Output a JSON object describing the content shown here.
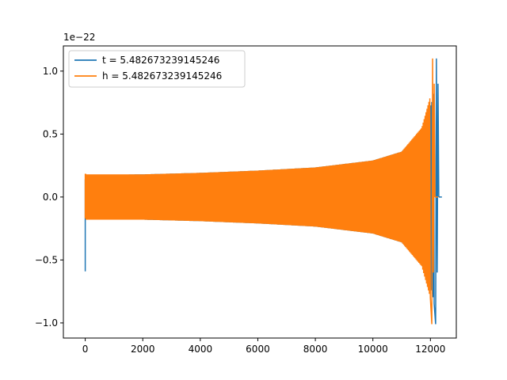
{
  "chart_data": {
    "type": "line",
    "title": "",
    "xlabel": "",
    "ylabel": "",
    "y_offset_text": "1e−22",
    "xlim": [
      -760,
      12900
    ],
    "ylim": [
      -1.12,
      1.2
    ],
    "x_ticks": [
      0,
      2000,
      4000,
      6000,
      8000,
      10000,
      12000
    ],
    "x_tick_labels": [
      "0",
      "2000",
      "4000",
      "6000",
      "8000",
      "10000",
      "12000"
    ],
    "y_ticks": [
      -1.0,
      -0.5,
      0.0,
      0.5,
      1.0
    ],
    "y_tick_labels": [
      "−1.0",
      "−0.5",
      "0.0",
      "0.5",
      "1.0"
    ],
    "grid": false,
    "legend_position": "top-left",
    "series": [
      {
        "name": "t = 5.482673239145246",
        "color": "#1f77b4",
        "shape": "chirp",
        "x_start": 0,
        "x_end": 12290,
        "start_spike": [
          -0.59,
          0.14
        ],
        "envelope": [
          [
            0,
            0.0
          ],
          [
            200,
            0.175
          ],
          [
            2000,
            0.18
          ],
          [
            4000,
            0.192
          ],
          [
            6000,
            0.21
          ],
          [
            8000,
            0.235
          ],
          [
            10000,
            0.29
          ],
          [
            11000,
            0.36
          ],
          [
            11800,
            0.55
          ],
          [
            12100,
            0.8
          ],
          [
            12290,
            1.1
          ]
        ],
        "peak_high": 1.1,
        "peak_low": -1.01
      },
      {
        "name": "h = 5.482673239145246",
        "color": "#ff7f0e",
        "shape": "chirp",
        "x_start": 0,
        "x_end": 12160,
        "start_spike": [
          -0.17,
          0.18
        ],
        "envelope": [
          [
            0,
            0.18
          ],
          [
            2000,
            0.18
          ],
          [
            4000,
            0.192
          ],
          [
            6000,
            0.21
          ],
          [
            8000,
            0.235
          ],
          [
            10000,
            0.29
          ],
          [
            11000,
            0.36
          ],
          [
            11700,
            0.55
          ],
          [
            12000,
            0.8
          ],
          [
            12160,
            1.1
          ]
        ],
        "peak_high": 1.1,
        "peak_low": -1.01
      }
    ]
  }
}
